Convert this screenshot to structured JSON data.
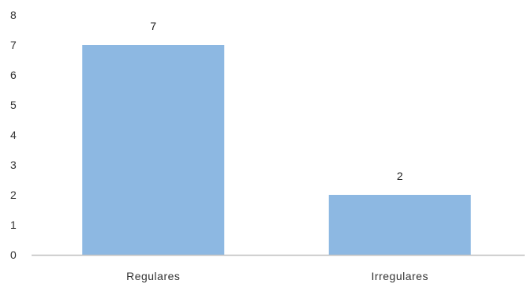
{
  "chart_data": {
    "type": "bar",
    "categories": [
      "Regulares",
      "Irregulares"
    ],
    "values": [
      7,
      2
    ],
    "ylim": [
      0,
      8
    ],
    "yticks": [
      0,
      1,
      2,
      3,
      4,
      5,
      6,
      7,
      8
    ],
    "ytick_labels": [
      "0",
      "1",
      "2",
      "3",
      "4",
      "5",
      "6",
      "7",
      "8"
    ],
    "data_labels": [
      "7",
      "2"
    ],
    "grid": false,
    "bar_color": "#8db8e2",
    "axis_color": "#bfbfbf"
  }
}
